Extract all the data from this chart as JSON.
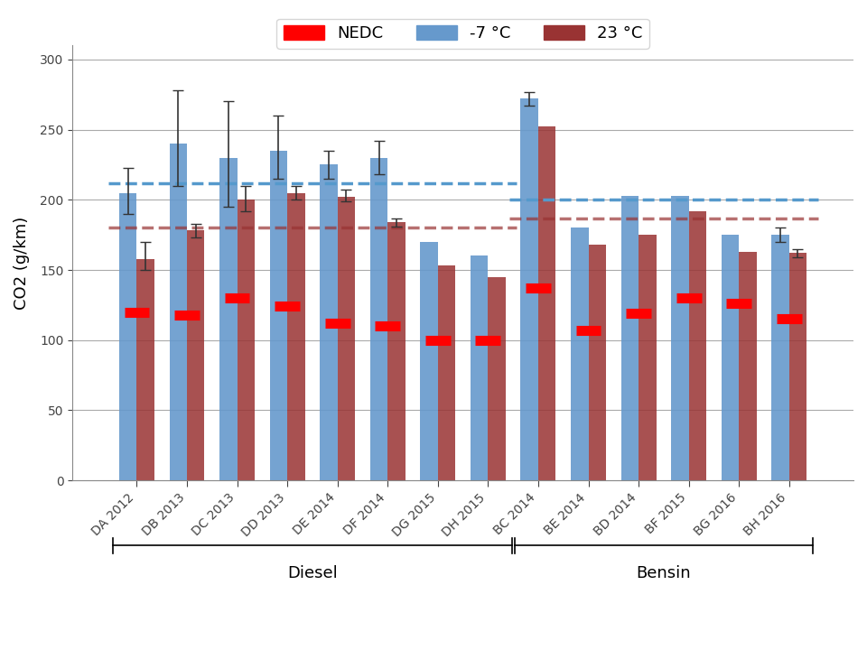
{
  "categories": [
    "DA 2012",
    "DB 2013",
    "DC 2013",
    "DD 2013",
    "DE 2014",
    "DF 2014",
    "DG 2015",
    "DH 2015",
    "BC 2014",
    "BE 2014",
    "BD 2014",
    "BF 2015",
    "BG 2016",
    "BH 2016"
  ],
  "group_labels": [
    "Diesel",
    "Bensin"
  ],
  "group_ranges": [
    [
      0,
      7
    ],
    [
      8,
      13
    ]
  ],
  "blue_vals": [
    205,
    240,
    230,
    235,
    225,
    230,
    170,
    160,
    272,
    180,
    203,
    203,
    175,
    175
  ],
  "red_vals": [
    158,
    178,
    200,
    205,
    202,
    184,
    153,
    145,
    252,
    168,
    175,
    192,
    163,
    162
  ],
  "nedc_vals": [
    120,
    118,
    130,
    124,
    112,
    110,
    100,
    100,
    137,
    107,
    119,
    130,
    126,
    115
  ],
  "blue_err": [
    18,
    38,
    40,
    25,
    10,
    12,
    0,
    0,
    5,
    0,
    0,
    0,
    0,
    5
  ],
  "red_err": [
    12,
    5,
    10,
    5,
    5,
    3,
    0,
    0,
    0,
    0,
    0,
    0,
    0,
    3
  ],
  "blue_err_low": [
    15,
    30,
    35,
    20,
    10,
    12,
    0,
    0,
    5,
    0,
    0,
    0,
    0,
    5
  ],
  "red_err_low": [
    8,
    5,
    8,
    5,
    3,
    3,
    0,
    0,
    0,
    0,
    0,
    0,
    0,
    3
  ],
  "dashed_blue_diesel": 212,
  "dashed_red_diesel": 180,
  "dashed_blue_bensin": 200,
  "dashed_red_bensin": 187,
  "bar_color_blue": "#6699cc",
  "bar_color_red": "#993333",
  "nedc_color": "#ff0000",
  "dashed_blue_color": "#5599cc",
  "dashed_red_color": "#993333",
  "ylabel": "CO2 (g/km)",
  "ylim": [
    0,
    310
  ],
  "yticks": [
    0,
    50,
    100,
    150,
    200,
    250,
    300
  ],
  "background_color": "#ffffff",
  "grid_color": "#aaaaaa",
  "legend_labels": [
    "NEDC",
    "-7 °C",
    "23 °C"
  ]
}
